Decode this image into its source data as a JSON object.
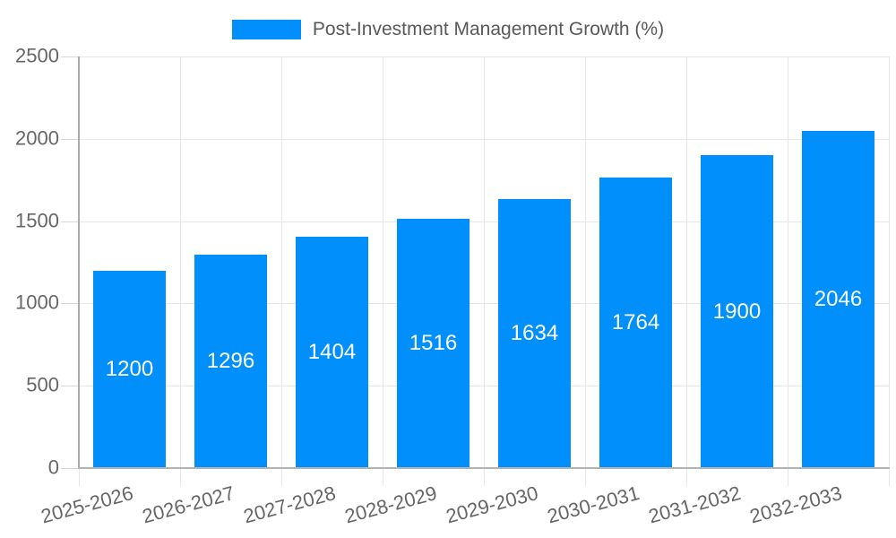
{
  "chart_data": {
    "type": "bar",
    "title": "",
    "legend_position": "top",
    "grid": true,
    "categories": [
      "2025-2026",
      "2026-2027",
      "2027-2028",
      "2028-2029",
      "2029-2030",
      "2030-2031",
      "2031-2032",
      "2032-2033"
    ],
    "series": [
      {
        "name": "Post-Investment Management Growth (%)",
        "values": [
          1200,
          1296,
          1404,
          1516,
          1634,
          1764,
          1900,
          2046
        ]
      }
    ],
    "data_labels": [
      1200,
      1296,
      1404,
      1516,
      1634,
      1764,
      1900,
      2046
    ],
    "xlabel": "",
    "ylabel": "",
    "ylim": [
      0,
      2500
    ],
    "yticks": [
      0,
      500,
      1000,
      1500,
      2000,
      2500
    ],
    "colors": {
      "bar": "#008FFB",
      "grid": "#e7e7e7",
      "axis": "#a9a9a9",
      "tick_label": "#666666",
      "value_label": "#ffffff",
      "legend_text": "#595959"
    }
  }
}
